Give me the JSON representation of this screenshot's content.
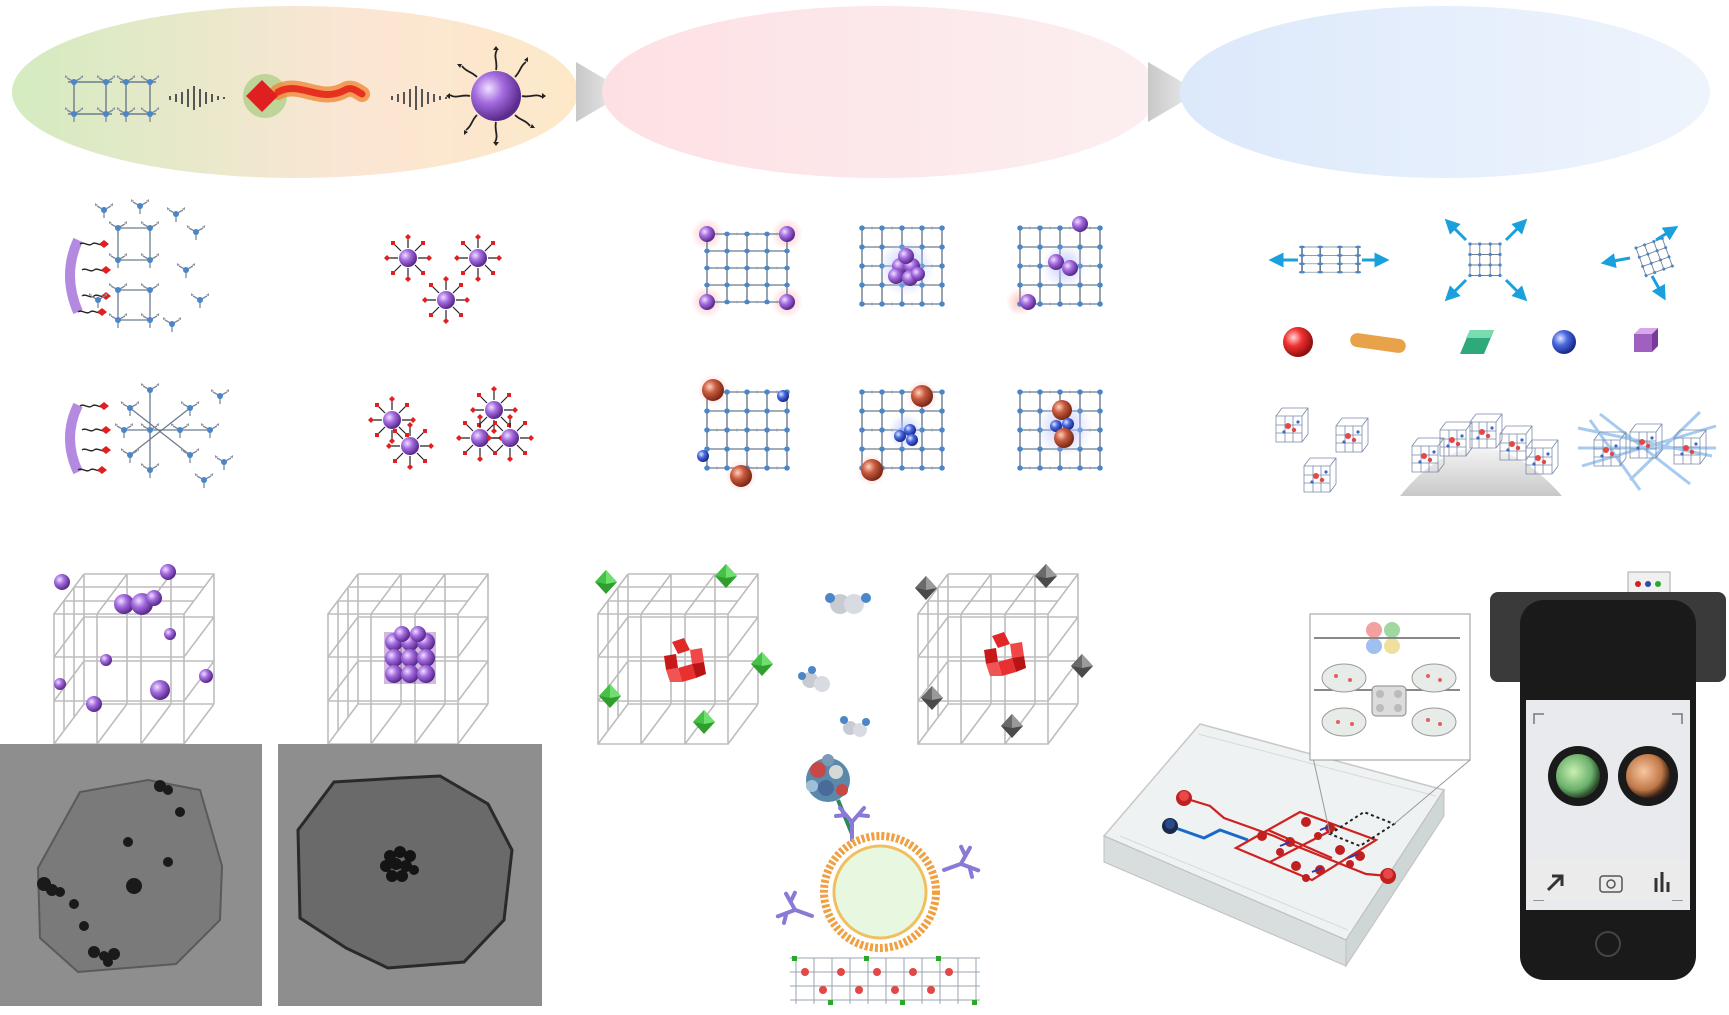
{
  "figure": {
    "banner_stages": [
      {
        "id": "stage-1",
        "color": "#dfeec9"
      },
      {
        "id": "stage-2",
        "color": "#fce3e6"
      },
      {
        "id": "stage-3",
        "color": "#e1ecfa"
      }
    ],
    "colors": {
      "node": "#4a86c8",
      "framework_line": "#7a8a9a",
      "ligand_red": "#e23a2a",
      "particle_purple": "#9a5fd6",
      "particle_red": "#c0503a",
      "arrow_cyan": "#1aa0dc",
      "cube_lines": "#b9b9b9",
      "green_octahedron": "#3cb43c",
      "grey_octahedron": "#666666",
      "tem_background": "#8c8c8c"
    },
    "icons": [
      "sound-wave-icon",
      "arrow-icon",
      "camera-icon",
      "bar-chart-icon"
    ]
  }
}
